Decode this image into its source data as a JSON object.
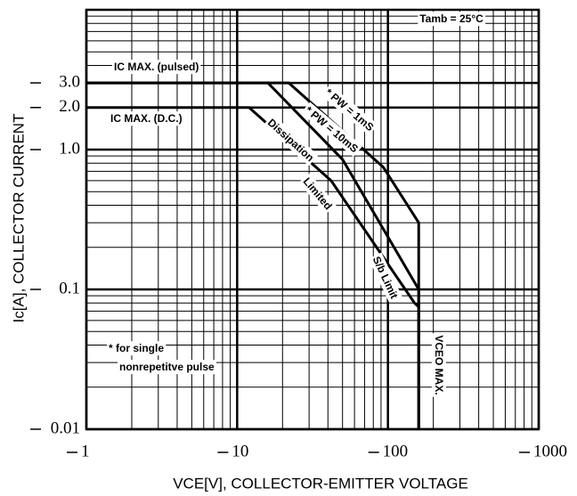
{
  "chart_data": {
    "type": "line",
    "x_label": "VCE[V], COLLECTOR-EMITTER VOLTAGE",
    "y_label": "Ic[A], COLLECTOR CURRENT",
    "log_x": true,
    "log_y": true,
    "grid": true,
    "color": "#000000",
    "xlim": [
      1,
      1000
    ],
    "ylim": [
      0.01,
      10
    ],
    "xticks": [
      1,
      10,
      100,
      1000
    ],
    "yticks": [
      {
        "value": 0.01,
        "label": "0.01"
      },
      {
        "value": 0.1,
        "label": "0.1"
      },
      {
        "value": 1,
        "label": "1.0"
      },
      {
        "value": 2,
        "label": "2.0"
      },
      {
        "value": 3,
        "label": "3.0"
      }
    ],
    "series": [
      {
        "name": "* PW = 1mS",
        "color": "#000000",
        "x": [
          1,
          22,
          93,
          160,
          160
        ],
        "values": [
          3,
          3,
          0.75,
          0.3,
          0.01
        ]
      },
      {
        "name": "* PW = 10mS",
        "color": "#000000",
        "x": [
          1,
          16,
          50,
          160,
          160
        ],
        "values": [
          3,
          3,
          0.85,
          0.1,
          0.01
        ]
      },
      {
        "color": "#000000",
        "x": [
          1,
          12,
          42,
          150,
          160
        ],
        "values": [
          2,
          2,
          0.6,
          0.08,
          0.075
        ]
      }
    ],
    "annotations": [
      "Tamb = 25°C",
      "IC MAX. (pulsed)",
      "IC MAX. (D.C.)",
      "Dissipation",
      "Limited",
      "S/b Limit",
      "VCEO MAX.",
      "* for single",
      "nonrepetitve pulse"
    ]
  }
}
